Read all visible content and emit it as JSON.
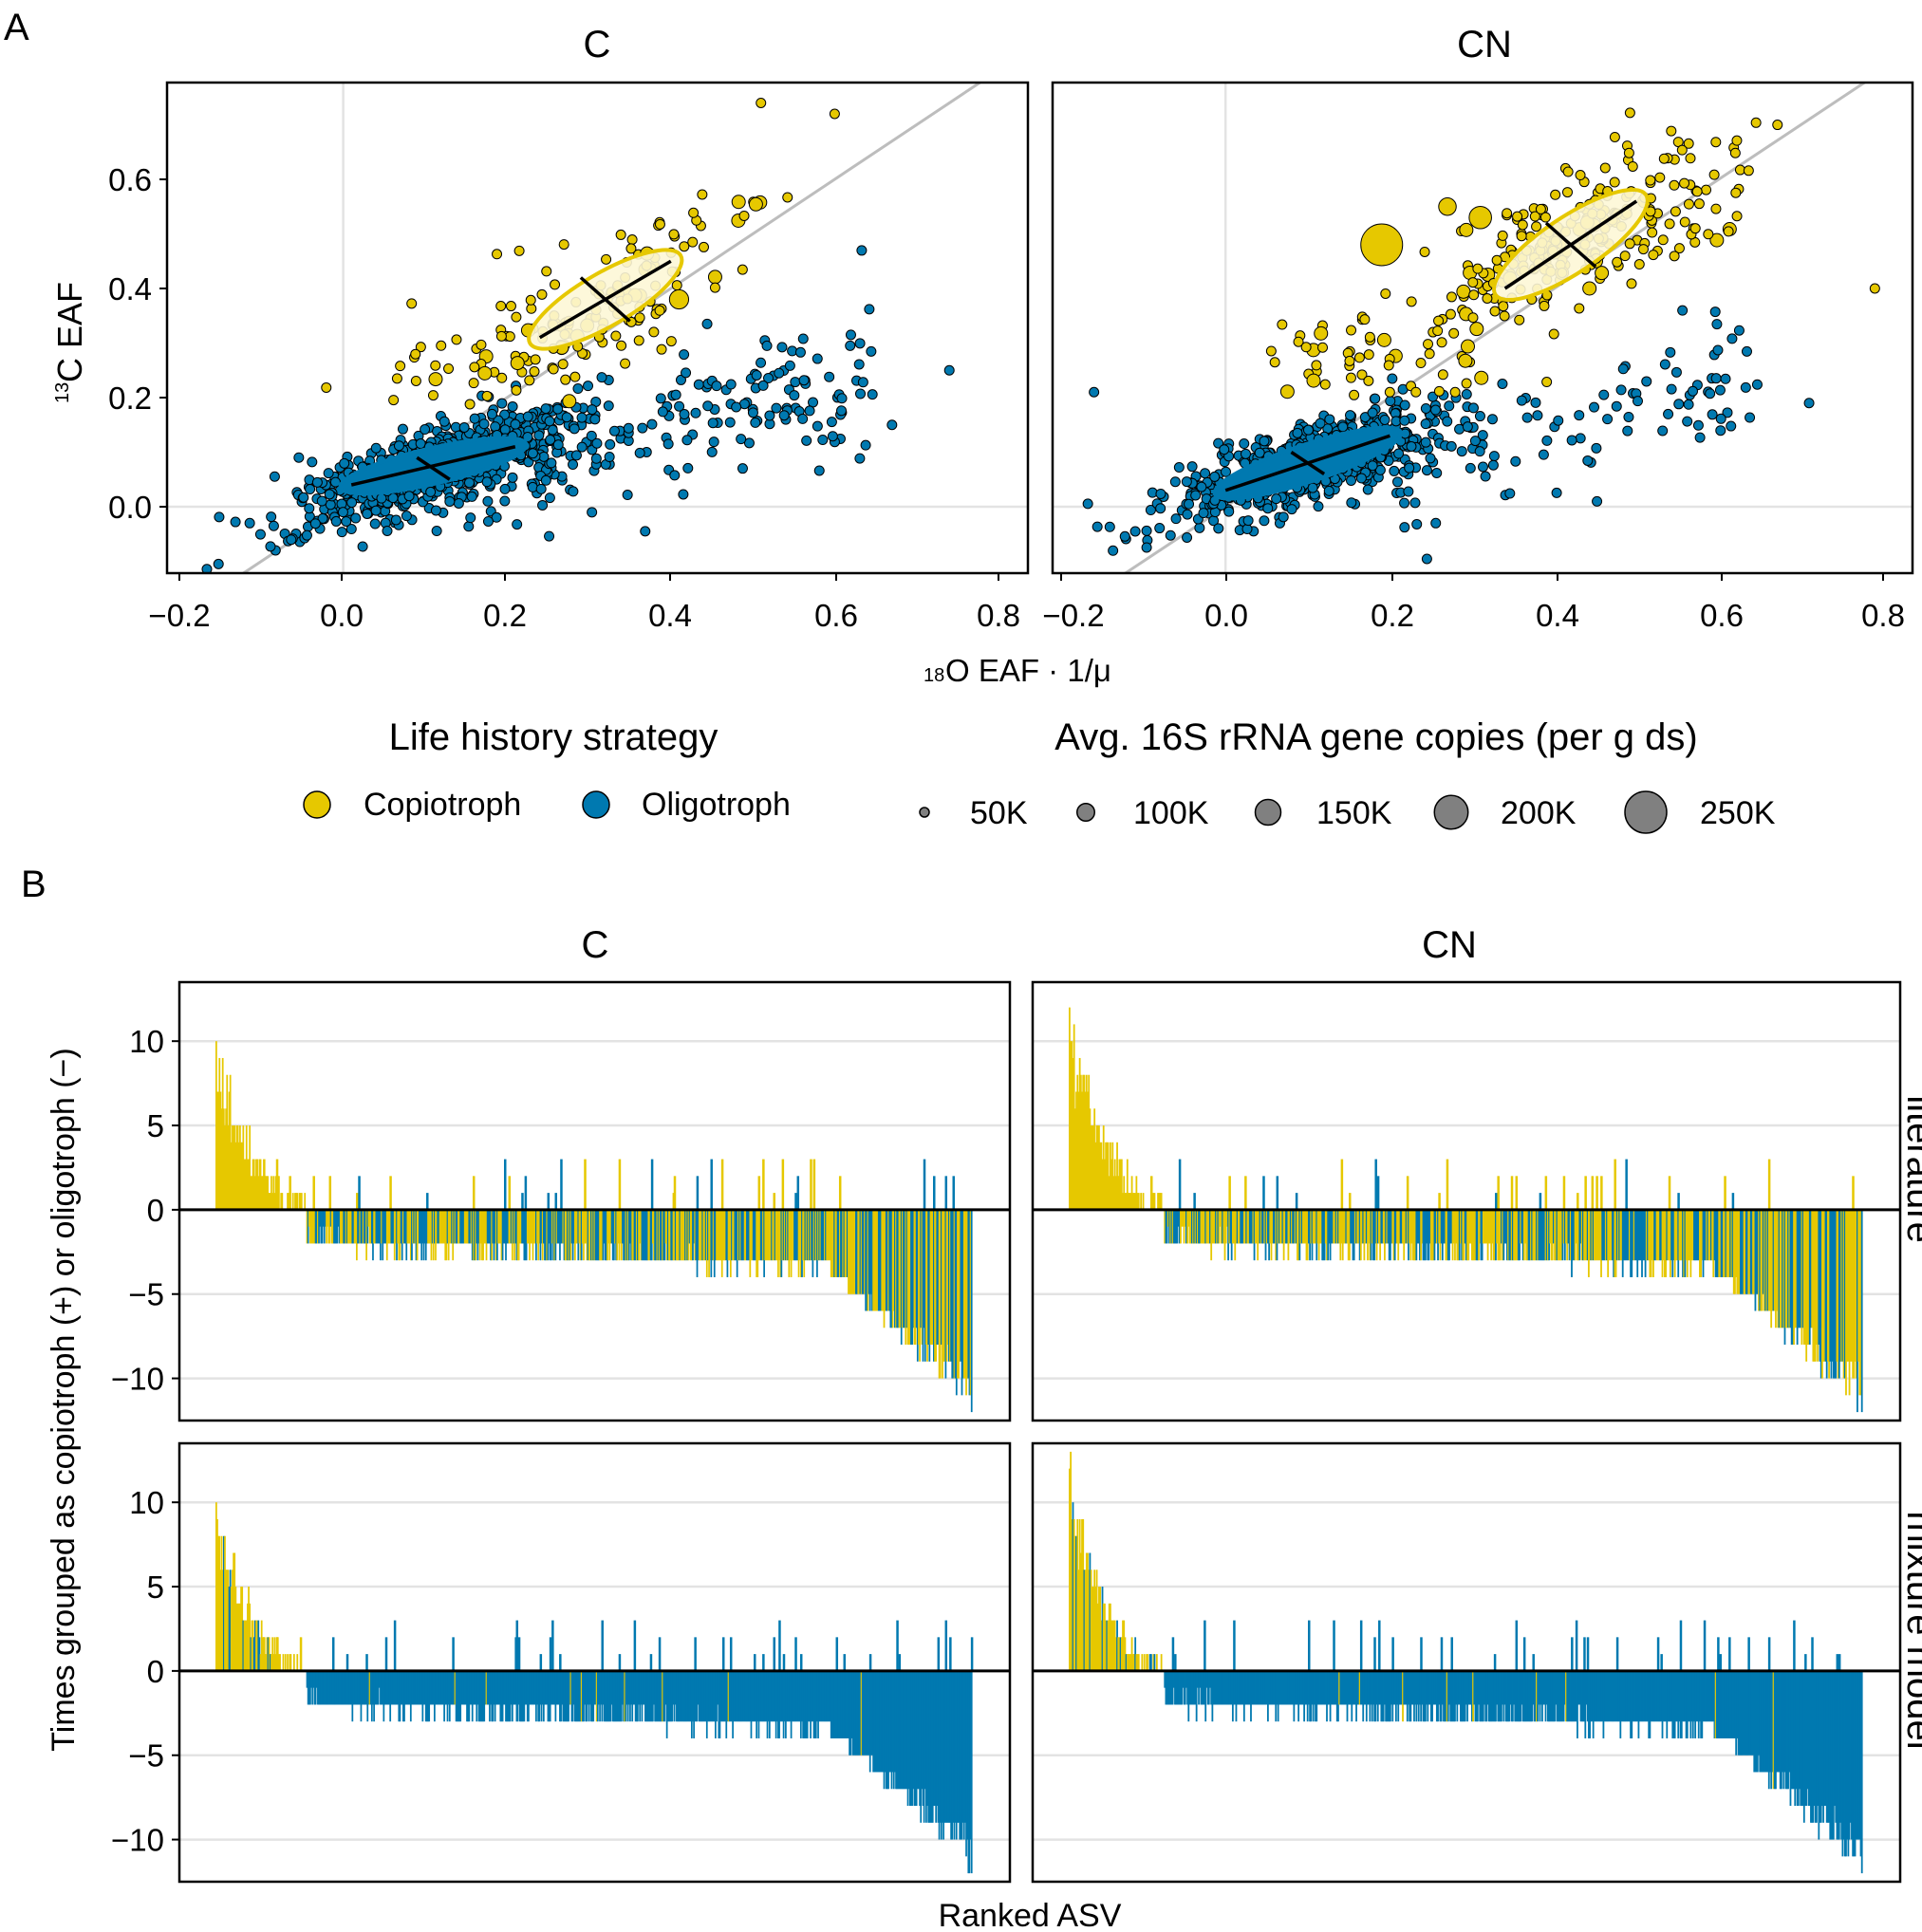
{
  "colors": {
    "copiotroph": "#e6c800",
    "oligotroph": "#0079b0",
    "ellipse_fill": "#fdf7d6",
    "one_to_one_line": "#bdbdbd",
    "grid": "#e3e3e3",
    "frame": "#000000"
  },
  "chart_data": [
    {
      "type": "scatter",
      "panel_label": "A",
      "facets": [
        "C",
        "CN"
      ],
      "xlabel_sup": "18",
      "xlabel_main": "O EAF · 1/μ",
      "ylabel_sup": "13",
      "ylabel_main": "C EAF",
      "xlim": [
        -0.2,
        0.8
      ],
      "ylim": [
        -0.12,
        0.76
      ],
      "x_ticks": [
        "−0.2",
        "0.0",
        "0.2",
        "0.4",
        "0.6",
        "0.8"
      ],
      "x_tick_values": [
        -0.2,
        0.0,
        0.2,
        0.4,
        0.6,
        0.8
      ],
      "y_ticks": [
        "0.0",
        "0.2",
        "0.4",
        "0.6"
      ],
      "y_tick_values": [
        0.0,
        0.2,
        0.4,
        0.6
      ],
      "reference_line": "y = x",
      "group_summaries": {
        "C": {
          "copiotroph": {
            "center": [
              0.32,
              0.38
            ],
            "ellipse_major": [
              [
                0.24,
                0.31
              ],
              [
                0.4,
                0.45
              ]
            ],
            "ellipse_minor": [
              [
                0.29,
                0.42
              ],
              [
                0.35,
                0.34
              ]
            ],
            "minor_half_width": 0.022
          },
          "oligotroph": {
            "center": [
              0.11,
              0.07
            ],
            "ellipse_major": [
              [
                0.01,
                0.04
              ],
              [
                0.21,
                0.11
              ]
            ],
            "ellipse_minor": [
              [
                0.09,
                0.09
              ],
              [
                0.13,
                0.05
              ]
            ],
            "minor_half_width": 0.011
          }
        },
        "CN": {
          "copiotroph": {
            "center": [
              0.42,
              0.48
            ],
            "ellipse_major": [
              [
                0.34,
                0.4
              ],
              [
                0.5,
                0.56
              ]
            ],
            "ellipse_minor": [
              [
                0.39,
                0.52
              ],
              [
                0.45,
                0.44
              ]
            ],
            "minor_half_width": 0.024
          },
          "oligotroph": {
            "center": [
              0.1,
              0.08
            ],
            "ellipse_major": [
              [
                0.0,
                0.03
              ],
              [
                0.2,
                0.13
              ]
            ],
            "ellipse_minor": [
              [
                0.08,
                0.1
              ],
              [
                0.12,
                0.06
              ]
            ],
            "minor_half_width": 0.012
          }
        }
      },
      "point_counts_approx": {
        "C": {
          "copiotroph": 160,
          "oligotroph": 900
        },
        "CN": {
          "copiotroph": 320,
          "oligotroph": 700
        }
      },
      "note_points": "Individual points estimated; notable outliers listed",
      "highlight_points": {
        "C": [
          {
            "x": 0.41,
            "y": 0.38,
            "group": "Copiotroph",
            "copies": 110000
          },
          {
            "x": 0.74,
            "y": 0.25,
            "group": "Oligotroph",
            "copies": 50000
          },
          {
            "x": 0.51,
            "y": 0.74,
            "group": "Copiotroph",
            "copies": 50000
          },
          {
            "x": 0.6,
            "y": 0.72,
            "group": "Copiotroph",
            "copies": 50000
          },
          {
            "x": 0.67,
            "y": 0.15,
            "group": "Oligotroph",
            "copies": 50000
          }
        ],
        "CN": [
          {
            "x": 0.19,
            "y": 0.48,
            "group": "Copiotroph",
            "copies": 250000
          },
          {
            "x": 0.31,
            "y": 0.53,
            "group": "Copiotroph",
            "copies": 130000
          },
          {
            "x": 0.27,
            "y": 0.55,
            "group": "Copiotroph",
            "copies": 100000
          },
          {
            "x": -0.16,
            "y": 0.21,
            "group": "Oligotroph",
            "copies": 50000
          },
          {
            "x": 0.79,
            "y": 0.4,
            "group": "Copiotroph",
            "copies": 50000
          },
          {
            "x": 0.71,
            "y": 0.19,
            "group": "Oligotroph",
            "copies": 50000
          }
        ]
      }
    },
    {
      "type": "bar",
      "panel_label": "B",
      "facets": [
        "C",
        "CN"
      ],
      "row_facets": [
        "literature",
        "mixture model"
      ],
      "xlabel": "Ranked ASV",
      "ylabel": "Times grouped as copiotroph (+) or oligotroph (−)",
      "ylim": [
        -12.5,
        13.5
      ],
      "y_ticks": [
        "10",
        "5",
        "0",
        "−5",
        "−10"
      ],
      "y_tick_values": [
        10,
        5,
        0,
        -5,
        -10
      ],
      "n_asvs_approx": {
        "C": 700,
        "CN": 700
      },
      "max_value": {
        "C": 10,
        "CN": 12
      },
      "min_value": {
        "C": -12,
        "CN": -12
      },
      "note": "Bars colored by life history group; values estimated from figure (ranked from most positive to most negative)"
    }
  ],
  "legend": {
    "strategy_title": "Life history strategy",
    "strategy_items": [
      "Copiotroph",
      "Oligotroph"
    ],
    "size_title": "Avg. 16S rRNA gene copies (per g ds)",
    "size_items": [
      "50K",
      "100K",
      "150K",
      "200K",
      "250K"
    ],
    "size_values": [
      50000,
      100000,
      150000,
      200000,
      250000
    ]
  }
}
